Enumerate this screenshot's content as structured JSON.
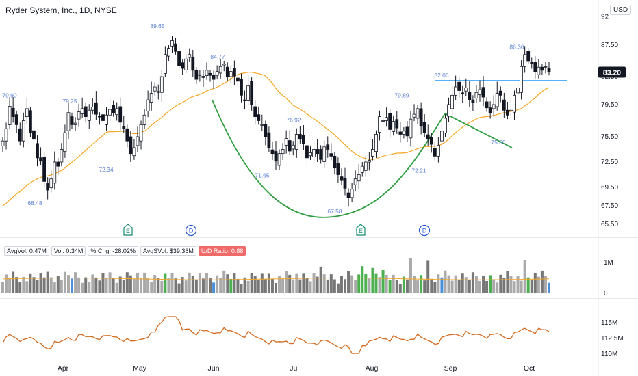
{
  "header": {
    "title": "Ryder System, Inc., 1D, NYSE",
    "currency": "USD"
  },
  "price_axis": {
    "top_partial": "92",
    "ticks": [
      "87.50",
      "82.50",
      "79.50",
      "75.50",
      "72.50",
      "69.50",
      "67.50",
      "65.50"
    ],
    "current_price": "83.20"
  },
  "volume_axis": {
    "ticks": [
      "1M",
      "0"
    ]
  },
  "indicator_axis": {
    "ticks": [
      "115M",
      "112.5M",
      "110M"
    ]
  },
  "time_axis": {
    "labels": [
      "Apr",
      "May",
      "Jun",
      "Jul",
      "Aug",
      "Sep",
      "Oct"
    ]
  },
  "volume_stats": [
    {
      "text": "AvgVol: 0.47M",
      "highlight": false
    },
    {
      "text": "Vol: 0.34M",
      "highlight": false
    },
    {
      "text": "% Chg: -28.02%",
      "highlight": false
    },
    {
      "text": "AvgSVol: $39.36M",
      "highlight": false
    },
    {
      "text": "U/D Ratio: 0.88",
      "highlight": true
    }
  ],
  "colors": {
    "up_candle_outline": "#131722",
    "down_candle": "#131722",
    "moving_average": "#f5a623",
    "cup_pattern": "#2e9d3f",
    "resistance_line": "#2196f3",
    "price_label": "#5b7fd6",
    "cumulative_line": "#d2691e",
    "volume_up": "#aaaaaa",
    "volume_down": "#777777",
    "volume_green": "#4caf50",
    "volume_blue": "#4a90d9",
    "current_price_bg": "#131722",
    "ud_ratio_bg": "#f06a6a"
  },
  "chart_data": {
    "type": "candlestick",
    "title": "Ryder System, Inc., 1D, NYSE",
    "price_markers": [
      {
        "label": "79.90",
        "month": "Mar",
        "price": 79.9
      },
      {
        "label": "68.48",
        "month": "Mar",
        "price": 68.48
      },
      {
        "label": "79.25",
        "month": "Apr",
        "price": 79.25
      },
      {
        "label": "72.34",
        "month": "Apr",
        "price": 72.34
      },
      {
        "label": "89.65",
        "month": "May",
        "price": 89.65
      },
      {
        "label": "84.77",
        "month": "May",
        "price": 84.77
      },
      {
        "label": "71.65",
        "month": "Jun",
        "price": 71.65
      },
      {
        "label": "76.92",
        "month": "Jul",
        "price": 76.92
      },
      {
        "label": "67.58",
        "month": "Jul",
        "price": 67.58
      },
      {
        "label": "79.89",
        "month": "Aug",
        "price": 79.89
      },
      {
        "label": "72.21",
        "month": "Aug",
        "price": 72.21
      },
      {
        "label": "82.06",
        "month": "Aug",
        "price": 82.06
      },
      {
        "label": "75.60",
        "month": "Sep",
        "price": 75.6
      },
      {
        "label": "86.36",
        "month": "Sep",
        "price": 86.36
      }
    ],
    "closes": [
      75,
      76.5,
      79.3,
      78,
      77,
      75,
      77.5,
      79,
      76,
      75.2,
      73,
      72.6,
      70.2,
      69.2,
      70.5,
      72.5,
      72,
      74,
      76,
      78.5,
      77,
      77.2,
      78.6,
      79,
      78,
      78.8,
      79.2,
      78.3,
      78,
      77.5,
      78.2,
      78.9,
      78.5,
      79,
      77.3,
      76.5,
      75,
      73.5,
      74.2,
      75.5,
      77,
      78.2,
      80,
      80.7,
      81.4,
      80.8,
      82.5,
      86,
      87,
      88.2,
      86.5,
      84.2,
      83.8,
      85.3,
      86,
      83.5,
      82.2,
      82.8,
      82.4,
      83.5,
      82.7,
      82.2,
      83.3,
      84.1,
      84.5,
      82.5,
      83.3,
      82.6,
      82,
      80.5,
      79.9,
      81.5,
      79.5,
      78,
      77.5,
      77,
      75.5,
      74.2,
      73.5,
      72.6,
      73.5,
      74,
      75.3,
      73.8,
      74.5,
      75.8,
      75.2,
      74.7,
      73,
      73.6,
      74,
      73.5,
      72.8,
      74.3,
      74,
      73.2,
      71.8,
      71,
      70.3,
      69.4,
      68.4,
      69.3,
      70.5,
      71,
      72,
      72.5,
      72.7,
      74,
      75.8,
      78,
      77.5,
      77.9,
      76.4,
      77.4,
      76.6,
      75.8,
      76.2,
      75.6,
      77.7,
      78.3,
      79,
      76.8,
      76,
      75.2,
      74.6,
      73.2,
      74.5,
      76.2,
      77.8,
      79.5,
      80.5,
      81.4,
      81,
      80.7,
      81.3,
      80,
      79.7,
      80.8,
      81.1,
      80.3,
      79.1,
      78.5,
      79.5,
      80.7,
      80.5,
      78.8,
      78.2,
      78.8,
      80.5,
      81.3,
      84.1,
      86,
      85,
      84.5,
      83.3,
      84,
      83.5,
      84.1,
      83.2
    ],
    "ma_start_end": [
      67.5,
      79.5
    ],
    "resistance_level": 82.06,
    "cup_points": [
      {
        "month": "Jun",
        "price": 80.0
      },
      {
        "month": "Jul",
        "price": 66.3
      },
      {
        "month": "Aug",
        "price": 72.3
      },
      {
        "month": "Sep",
        "price": 78.4
      }
    ],
    "handle_line": {
      "from": 78.4,
      "to": 74.2
    },
    "events": [
      {
        "label": "E",
        "month": "Apr"
      },
      {
        "label": "D",
        "month": "May"
      },
      {
        "label": "E",
        "month": "Jul"
      },
      {
        "label": "D",
        "month": "Aug"
      }
    ],
    "volume_last": 0.34,
    "volume_avg": 0.47,
    "cumulative_range": [
      110,
      116
    ]
  }
}
